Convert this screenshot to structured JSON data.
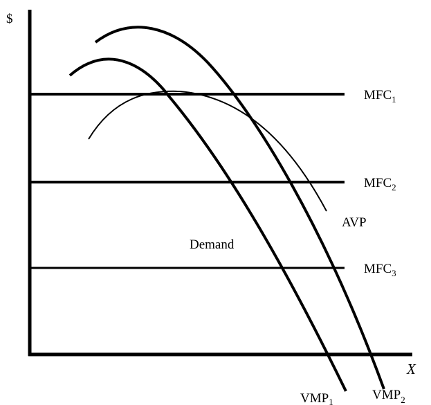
{
  "diagram": {
    "y_axis_label": "$",
    "x_axis_label": "X",
    "curves": {
      "mfc1": {
        "base": "MFC",
        "sub": "1"
      },
      "mfc2": {
        "base": "MFC",
        "sub": "2"
      },
      "mfc3": {
        "base": "MFC",
        "sub": "3"
      },
      "avp": {
        "label": "AVP"
      },
      "demand": {
        "label": "Demand"
      },
      "vmp1": {
        "base": "VMP",
        "sub": "1"
      },
      "vmp2": {
        "base": "VMP",
        "sub": "2"
      }
    }
  }
}
